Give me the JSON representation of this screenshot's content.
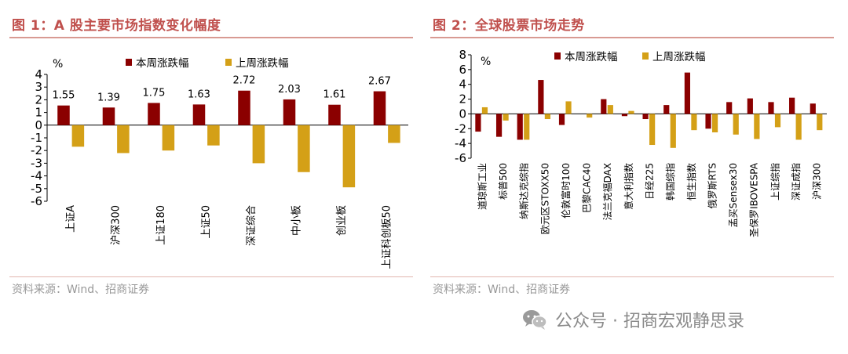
{
  "figure1": {
    "title": "图 1：A 股主要市场指数变化幅度",
    "source": "资料来源：Wind、招商证券"
  },
  "figure2": {
    "title": "图 2：全球股票市场走势",
    "source": "资料来源：Wind、招商证券"
  },
  "watermark": {
    "text": "公众号 · 招商宏观静思录",
    "icon": "wechat-icon"
  },
  "colors": {
    "this_week": "#8b0000",
    "last_week": "#d4a017",
    "title_red": "#c0504d"
  },
  "chart_data": [
    {
      "type": "bar",
      "title": "A 股主要市场指数变化幅度",
      "ylabel": "%",
      "ylim": [
        -6,
        4
      ],
      "yticks": [
        -6,
        -5,
        -4,
        -3,
        -2,
        -1,
        0,
        1,
        2,
        3,
        4
      ],
      "gridlines": false,
      "legend_position": "top",
      "categories": [
        "上证A",
        "沪深300",
        "上证180",
        "上证50",
        "深证综合",
        "中小板",
        "创业板",
        "上证科创板50"
      ],
      "series": [
        {
          "name": "本周涨跌幅",
          "values": [
            1.55,
            1.39,
            1.75,
            1.63,
            2.72,
            2.03,
            1.61,
            2.67
          ],
          "labels": [
            "1.55",
            "1.39",
            "1.75",
            "1.63",
            "2.72",
            "2.03",
            "1.61",
            "2.67"
          ]
        },
        {
          "name": "上周涨跌幅",
          "values": [
            -1.7,
            -2.2,
            -2.0,
            -1.6,
            -3.0,
            -3.7,
            -4.9,
            -1.4
          ]
        }
      ]
    },
    {
      "type": "bar",
      "title": "全球股票市场走势",
      "ylabel": "%",
      "ylim": [
        -6,
        8
      ],
      "yticks": [
        -6,
        -4,
        -2,
        0,
        2,
        4,
        6,
        8
      ],
      "gridlines": false,
      "legend_position": "top",
      "categories": [
        "道琼斯工业",
        "标普500",
        "纳斯达克综指",
        "欧元区STOXX50",
        "伦敦富时100",
        "巴黎CAC40",
        "法兰克福DAX",
        "意大利指数",
        "日经225",
        "韩国综指",
        "恒生指数",
        "俄罗斯RTS",
        "孟买Sensex30",
        "圣保罗IBOVESPA",
        "上证综指",
        "深证成指",
        "沪深300"
      ],
      "series": [
        {
          "name": "本周涨跌幅",
          "values": [
            -2.4,
            -3.1,
            -3.5,
            4.6,
            -1.5,
            0.0,
            2.0,
            -0.3,
            -0.7,
            1.2,
            5.6,
            -2.0,
            1.6,
            2.1,
            1.6,
            2.2,
            1.4
          ]
        },
        {
          "name": "上周涨跌幅",
          "values": [
            0.9,
            -0.9,
            -3.5,
            -0.7,
            1.7,
            -0.5,
            1.2,
            0.4,
            -4.2,
            -4.6,
            -2.2,
            -2.5,
            -2.8,
            -3.4,
            -1.8,
            -3.5,
            -2.2
          ]
        }
      ]
    }
  ]
}
